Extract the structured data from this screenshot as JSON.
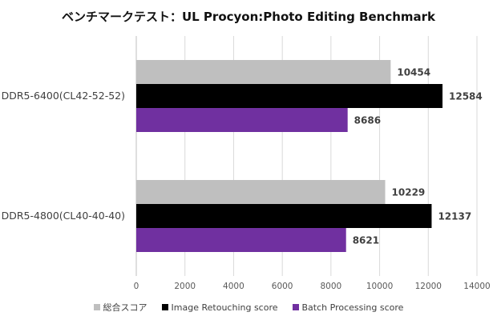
{
  "chart_data": {
    "type": "bar",
    "orientation": "horizontal",
    "title": "ベンチマークテスト：UL Procyon:Photo Editing Benchmark",
    "categories": [
      "DDR5-6400(CL42-52-52)",
      "DDR5-4800(CL40-40-40)"
    ],
    "series": [
      {
        "name": "総合スコア",
        "color": "#bfbfbf",
        "values": [
          10454,
          10229
        ]
      },
      {
        "name": "Image Retouching score",
        "color": "#000000",
        "values": [
          12584,
          12137
        ]
      },
      {
        "name": "Batch Processing score",
        "color": "#7030a0",
        "values": [
          8686,
          8621
        ]
      }
    ],
    "xlim": [
      0,
      14000
    ],
    "xticks": [
      0,
      2000,
      4000,
      6000,
      8000,
      10000,
      12000,
      14000
    ],
    "grid": "vertical",
    "legend_position": "bottom",
    "data_labels": true
  }
}
